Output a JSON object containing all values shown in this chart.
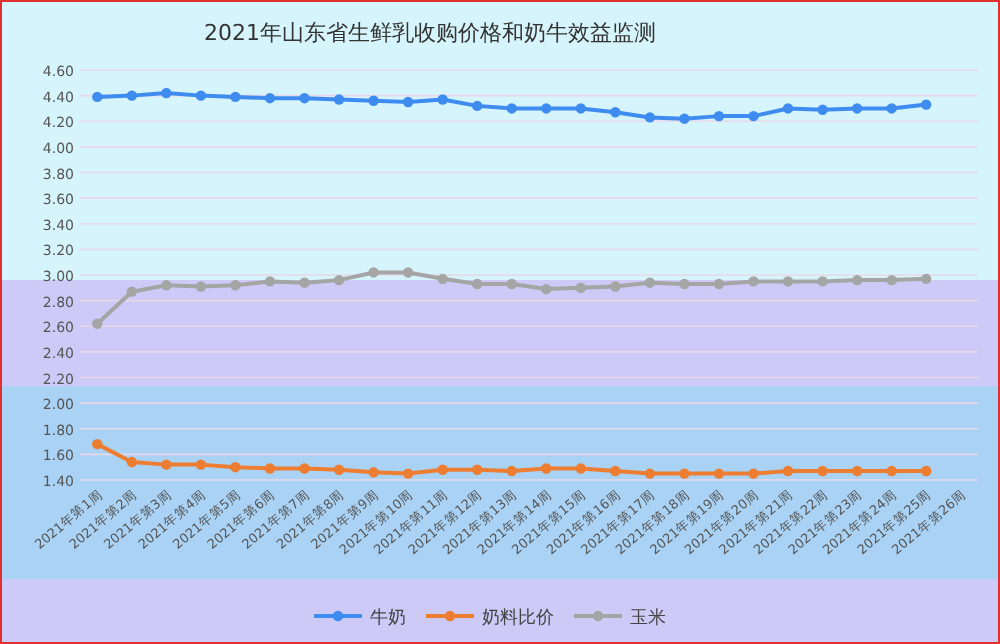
{
  "chart_data": {
    "type": "line",
    "title": "2021年山东省生鲜乳收购价格和奶牛效益监测",
    "categories": [
      "2021年第1周",
      "2021年第2周",
      "2021年第3周",
      "2021年第4周",
      "2021年第5周",
      "2021年第6周",
      "2021年第7周",
      "2021年第8周",
      "2021年第9周",
      "2021年第10周",
      "2021年第11周",
      "2021年第12周",
      "2021年第13周",
      "2021年第14周",
      "2021年第15周",
      "2021年第16周",
      "2021年第17周",
      "2021年第18周",
      "2021年第19周",
      "2021年第20周",
      "2021年第21周",
      "2021年第22周",
      "2021年第23周",
      "2021年第24周",
      "2021年第25周",
      "2021年第26周"
    ],
    "series": [
      {
        "name": "牛奶",
        "color": "#3f8cf0",
        "values": [
          4.39,
          4.4,
          4.42,
          4.4,
          4.39,
          4.38,
          4.38,
          4.37,
          4.36,
          4.35,
          4.37,
          4.32,
          4.3,
          4.3,
          4.3,
          4.27,
          4.23,
          4.22,
          4.24,
          4.24,
          4.3,
          4.29,
          4.3,
          4.3,
          4.33,
          null
        ]
      },
      {
        "name": "奶料比价",
        "color": "#ed7d31",
        "values": [
          1.68,
          1.54,
          1.52,
          1.52,
          1.5,
          1.49,
          1.49,
          1.48,
          1.46,
          1.45,
          1.48,
          1.48,
          1.47,
          1.49,
          1.49,
          1.47,
          1.45,
          1.45,
          1.45,
          1.45,
          1.47,
          1.47,
          1.47,
          1.47,
          1.47,
          null
        ]
      },
      {
        "name": "玉米",
        "color": "#a5a5a5",
        "values": [
          2.62,
          2.87,
          2.92,
          2.91,
          2.92,
          2.95,
          2.94,
          2.96,
          3.02,
          3.02,
          2.97,
          2.93,
          2.93,
          2.89,
          2.9,
          2.91,
          2.94,
          2.93,
          2.93,
          2.95,
          2.95,
          2.95,
          2.96,
          2.96,
          2.97,
          null
        ]
      }
    ],
    "ylim": [
      1.4,
      4.6
    ],
    "yticks": [
      {
        "value": 1.4,
        "label": "1.40"
      },
      {
        "value": 1.6,
        "label": "1.60"
      },
      {
        "value": 1.8,
        "label": "1.80"
      },
      {
        "value": 2.0,
        "label": "2.00"
      },
      {
        "value": 2.2,
        "label": "2.20"
      },
      {
        "value": 2.4,
        "label": "2.40"
      },
      {
        "value": 2.6,
        "label": "2.60"
      },
      {
        "value": 2.8,
        "label": "2.80"
      },
      {
        "value": 3.0,
        "label": "3.00"
      },
      {
        "value": 3.2,
        "label": "3.20"
      },
      {
        "value": 3.4,
        "label": "3.40"
      },
      {
        "value": 3.6,
        "label": "3.60"
      },
      {
        "value": 3.8,
        "label": "3.80"
      },
      {
        "value": 4.0,
        "label": "4.00"
      },
      {
        "value": 4.2,
        "label": "4.20"
      },
      {
        "value": 4.4,
        "label": "4.40"
      },
      {
        "value": 4.6,
        "label": "4.60"
      }
    ],
    "grid": "y",
    "legend": "bottom",
    "marker": "circle",
    "line_style": "solid"
  }
}
